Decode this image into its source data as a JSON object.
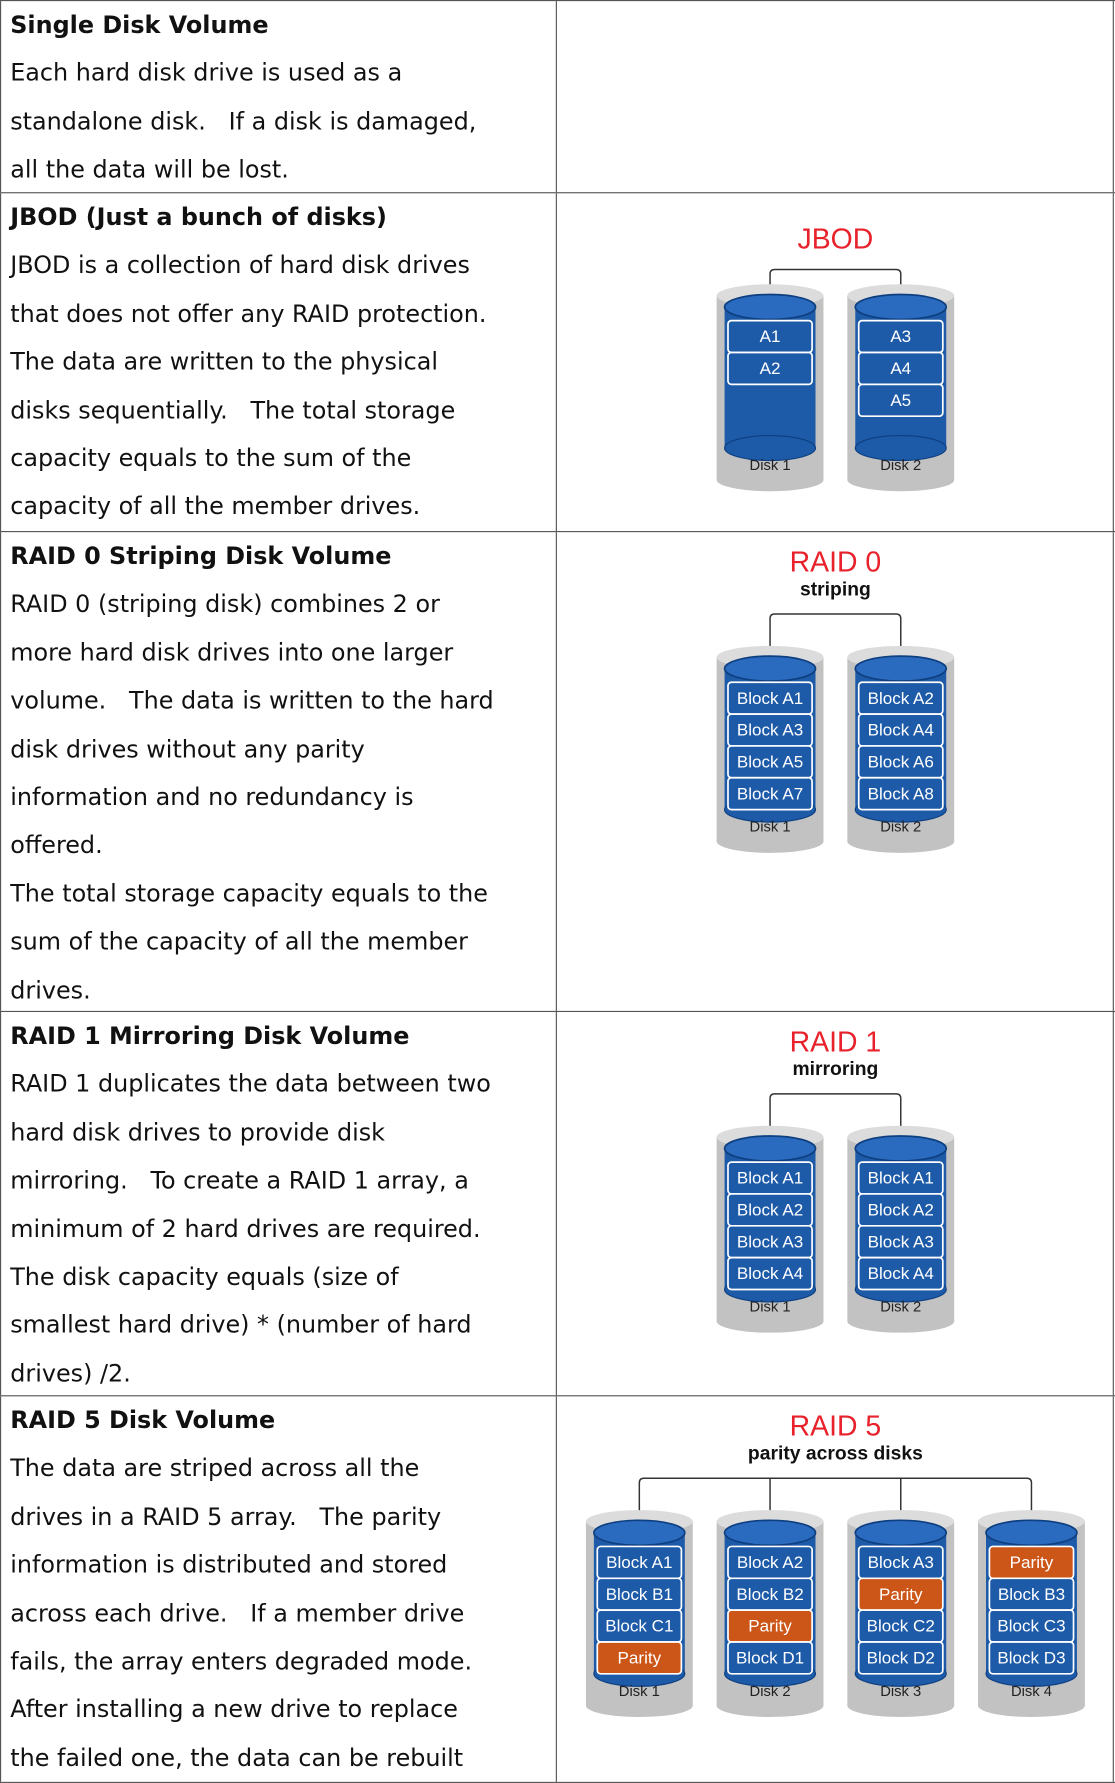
{
  "rows": [
    {
      "title": "Single Disk Volume",
      "lines": [
        "Each hard disk drive is used as a",
        "standalone disk.   If a disk is damaged,",
        "all the data will be lost."
      ]
    },
    {
      "title": "JBOD (Just a bunch of disks)",
      "lines": [
        "JBOD is a collection of hard disk drives",
        "that does not offer any RAID protection.",
        "The data are written to the physical",
        "disks sequentially.   The total storage",
        "capacity equals to the sum of the",
        "capacity of all the member drives."
      ],
      "diagram": {
        "title": "JBOD",
        "disks": [
          {
            "label": "Disk 1",
            "blocks": [
              "A1",
              "A2"
            ]
          },
          {
            "label": "Disk 2",
            "blocks": [
              "A3",
              "A4",
              "A5"
            ]
          }
        ]
      }
    },
    {
      "title": "RAID 0 Striping Disk Volume",
      "lines": [
        "RAID 0 (striping disk) combines 2 or",
        "more hard disk drives into one larger",
        "volume.   The data is written to the hard",
        "disk drives without any parity",
        "information and no redundancy is",
        "offered.",
        "The total storage capacity equals to the",
        "sum of the capacity of all the member",
        "drives."
      ],
      "diagram": {
        "title": "RAID 0",
        "subtitle": "striping",
        "disks": [
          {
            "label": "Disk 1",
            "blocks": [
              "Block A1",
              "Block A3",
              "Block A5",
              "Block A7"
            ]
          },
          {
            "label": "Disk 2",
            "blocks": [
              "Block A2",
              "Block A4",
              "Block A6",
              "Block A8"
            ]
          }
        ]
      }
    },
    {
      "title": "RAID 1 Mirroring Disk Volume",
      "lines": [
        "RAID 1 duplicates the data between two",
        "hard disk drives to provide disk",
        "mirroring.   To create a RAID 1 array, a",
        "minimum of 2 hard drives are required.",
        "The disk capacity equals (size of",
        "smallest hard drive) * (number of hard",
        "drives) /2."
      ],
      "diagram": {
        "title": "RAID 1",
        "subtitle": "mirroring",
        "disks": [
          {
            "label": "Disk 1",
            "blocks": [
              "Block A1",
              "Block A2",
              "Block A3",
              "Block A4"
            ]
          },
          {
            "label": "Disk 2",
            "blocks": [
              "Block A1",
              "Block A2",
              "Block A3",
              "Block A4"
            ]
          }
        ]
      }
    },
    {
      "title": "RAID 5 Disk Volume",
      "lines": [
        "The data are striped across all the",
        "drives in a RAID 5 array.   The parity",
        "information is distributed and stored",
        "across each drive.   If a member drive",
        "fails, the array enters degraded mode.",
        "After installing a new drive to replace",
        "the failed one, the data can be rebuilt"
      ],
      "diagram": {
        "title": "RAID 5",
        "subtitle": "parity across disks",
        "disks": [
          {
            "label": "Disk 1",
            "blocks": [
              "Block A1",
              "Block B1",
              "Block C1",
              {
                "text": "Parity",
                "color": "#cc5518"
              }
            ]
          },
          {
            "label": "Disk 2",
            "blocks": [
              "Block A2",
              "Block B2",
              {
                "text": "Parity",
                "color": "#cc5518"
              },
              "Block D1"
            ]
          },
          {
            "label": "Disk 3",
            "blocks": [
              "Block A3",
              {
                "text": "Parity",
                "color": "#cc5518"
              },
              "Block C2",
              "Block D2"
            ]
          },
          {
            "label": "Disk 4",
            "blocks": [
              {
                "text": "Parity",
                "color": "#cc5518"
              },
              "Block B3",
              "Block C3",
              "Block D3"
            ]
          }
        ]
      }
    }
  ]
}
